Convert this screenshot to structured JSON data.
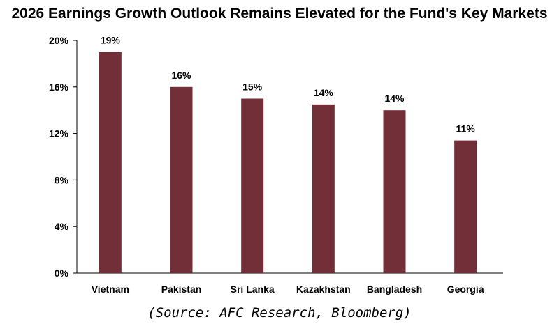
{
  "chart_data": {
    "type": "bar",
    "title": "2026 Earnings Growth Outlook Remains Elevated for the Fund's Key Markets",
    "categories": [
      "Vietnam",
      "Pakistan",
      "Sri Lanka",
      "Kazakhstan",
      "Bangladesh",
      "Georgia"
    ],
    "values": [
      19.0,
      16.0,
      15.0,
      14.5,
      14.0,
      11.4
    ],
    "data_labels": [
      "19%",
      "16%",
      "15%",
      "14%",
      "14%",
      "11%"
    ],
    "ylim": [
      0,
      20
    ],
    "yticks": [
      0,
      4,
      8,
      12,
      16,
      20
    ],
    "ytick_labels": [
      "0%",
      "4%",
      "8%",
      "12%",
      "16%",
      "20%"
    ],
    "xlabel": "",
    "ylabel": "",
    "grid": false,
    "bar_color": "#722F37",
    "source": "(Source: AFC Research, Bloomberg)"
  }
}
